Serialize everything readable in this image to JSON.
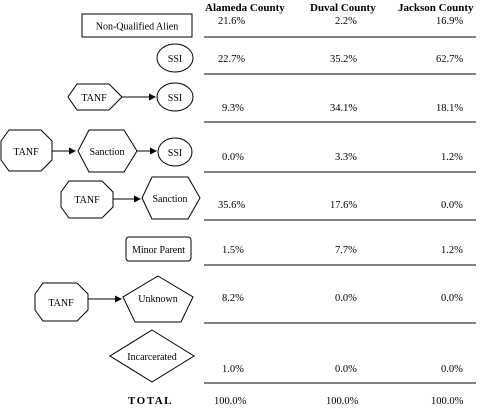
{
  "columns": [
    "Alameda County",
    "Duval County",
    "Jackson County"
  ],
  "rows": [
    {
      "label": "Non-Qualified Alien",
      "values": [
        "21.6%",
        "2.2%",
        "16.9%"
      ]
    },
    {
      "label": "SSI",
      "values": [
        "22.7%",
        "35.2%",
        "62.7%"
      ]
    },
    {
      "label": "TANF → SSI",
      "values": [
        "9.3%",
        "34.1%",
        "18.1%"
      ]
    },
    {
      "label": "TANF → Sanction → SSI",
      "values": [
        "0.0%",
        "3.3%",
        "1.2%"
      ]
    },
    {
      "label": "TANF → Sanction",
      "values": [
        "35.6%",
        "17.6%",
        "0.0%"
      ]
    },
    {
      "label": "Minor Parent",
      "values": [
        "1.5%",
        "7.7%",
        "1.2%"
      ]
    },
    {
      "label": "TANF → Unknown",
      "values": [
        "8.2%",
        "0.0%",
        "0.0%"
      ]
    },
    {
      "label": "Incarcerated",
      "values": [
        "1.0%",
        "0.0%",
        "0.0%"
      ]
    }
  ],
  "total": {
    "label": "TOTAL",
    "values": [
      "100.0%",
      "100.0%",
      "100.0%"
    ]
  },
  "nodes": {
    "non_qualified_alien": "Non-Qualified Alien",
    "ssi": "SSI",
    "tanf": "TANF",
    "sanction": "Sanction",
    "minor_parent": "Minor Parent",
    "unknown": "Unknown",
    "incarcerated": "Incarcerated"
  }
}
